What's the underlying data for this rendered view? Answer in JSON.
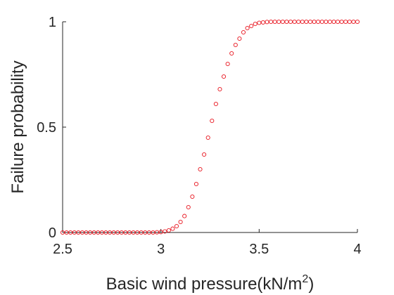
{
  "chart_data": {
    "type": "scatter",
    "xlabel": {
      "main": "Basic wind pressure(kN/m",
      "sup": "2",
      "close": ")"
    },
    "ylabel": "Failure probability",
    "xlim": [
      2.5,
      4.0
    ],
    "ylim": [
      0,
      1
    ],
    "xticks": [
      2.5,
      3,
      3.5,
      4
    ],
    "xtick_labels": [
      "2.5",
      "3",
      "3.5",
      "4"
    ],
    "yticks": [
      0,
      0.5,
      1
    ],
    "ytick_labels": [
      "0",
      "0.5",
      "1"
    ],
    "grid": false,
    "marker": "open-circle",
    "marker_color": "#e8141e",
    "series": [
      {
        "x": [
          2.5,
          2.52,
          2.54,
          2.56,
          2.58,
          2.6,
          2.62,
          2.64,
          2.66,
          2.68,
          2.7,
          2.72,
          2.74,
          2.76,
          2.78,
          2.8,
          2.82,
          2.84,
          2.86,
          2.88,
          2.9,
          2.92,
          2.94,
          2.96,
          2.98,
          3.0,
          3.02,
          3.04,
          3.06,
          3.08,
          3.1,
          3.12,
          3.14,
          3.16,
          3.18,
          3.2,
          3.22,
          3.24,
          3.26,
          3.28,
          3.3,
          3.32,
          3.34,
          3.36,
          3.38,
          3.4,
          3.42,
          3.44,
          3.46,
          3.48,
          3.5,
          3.52,
          3.54,
          3.56,
          3.58,
          3.6,
          3.62,
          3.64,
          3.66,
          3.68,
          3.7,
          3.72,
          3.74,
          3.76,
          3.78,
          3.8,
          3.82,
          3.84,
          3.86,
          3.88,
          3.9,
          3.92,
          3.94,
          3.96,
          3.98,
          4.0
        ],
        "y": [
          0,
          0,
          0,
          0,
          0,
          0,
          0,
          0,
          0,
          0,
          0,
          0,
          0,
          0,
          0,
          0,
          0,
          0,
          0,
          0,
          0,
          0,
          0,
          0,
          0.001,
          0.002,
          0.005,
          0.01,
          0.018,
          0.03,
          0.05,
          0.078,
          0.12,
          0.17,
          0.23,
          0.3,
          0.37,
          0.45,
          0.53,
          0.61,
          0.68,
          0.74,
          0.8,
          0.85,
          0.89,
          0.92,
          0.95,
          0.97,
          0.98,
          0.99,
          0.995,
          0.997,
          0.999,
          1,
          1,
          1,
          1,
          1,
          1,
          1,
          1,
          1,
          1,
          1,
          1,
          1,
          1,
          1,
          1,
          1,
          1,
          1,
          1,
          1,
          1,
          1
        ]
      }
    ]
  }
}
